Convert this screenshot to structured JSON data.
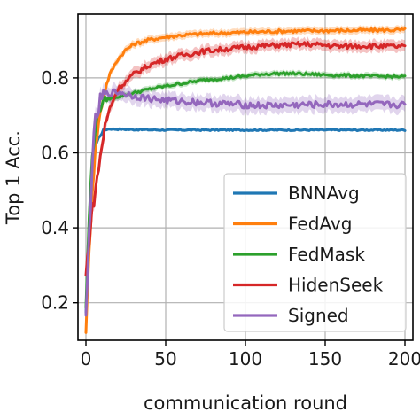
{
  "chart_data": {
    "type": "line",
    "xlabel": "communication round",
    "ylabel": "Top 1 Acc.",
    "xlim": [
      -5,
      205
    ],
    "ylim": [
      0.1,
      0.97
    ],
    "xticks": [
      0,
      50,
      100,
      150,
      200
    ],
    "xtick_labels": [
      "0",
      "50",
      "100",
      "150",
      "200"
    ],
    "yticks": [
      0.2,
      0.4,
      0.6,
      0.8
    ],
    "ytick_labels": [
      "0.2",
      "0.4",
      "0.6",
      "0.8"
    ],
    "grid": true,
    "legend_position": "lower-right",
    "series": [
      {
        "name": "BNNAvg",
        "color": "#1f77b4",
        "x": [
          0,
          2,
          4,
          6,
          8,
          10,
          12,
          15,
          20,
          30,
          50,
          75,
          100,
          125,
          150,
          175,
          200
        ],
        "y": [
          0.17,
          0.4,
          0.55,
          0.62,
          0.64,
          0.655,
          0.662,
          0.664,
          0.663,
          0.662,
          0.661,
          0.661,
          0.661,
          0.661,
          0.661,
          0.661,
          0.661
        ],
        "band": 0.004
      },
      {
        "name": "FedAvg",
        "color": "#ff7f0e",
        "x": [
          0,
          2,
          4,
          6,
          8,
          10,
          12,
          15,
          20,
          25,
          30,
          40,
          50,
          60,
          75,
          100,
          125,
          150,
          175,
          200
        ],
        "y": [
          0.13,
          0.33,
          0.5,
          0.61,
          0.68,
          0.73,
          0.77,
          0.81,
          0.85,
          0.875,
          0.89,
          0.902,
          0.909,
          0.914,
          0.918,
          0.922,
          0.925,
          0.926,
          0.927,
          0.928
        ],
        "band": 0.01
      },
      {
        "name": "FedMask",
        "color": "#2ca02c",
        "x": [
          0,
          2,
          4,
          6,
          8,
          10,
          12,
          15,
          20,
          30,
          40,
          50,
          60,
          75,
          90,
          100,
          110,
          125,
          140,
          150,
          175,
          200
        ],
        "y": [
          0.19,
          0.43,
          0.59,
          0.67,
          0.71,
          0.73,
          0.74,
          0.745,
          0.75,
          0.76,
          0.77,
          0.778,
          0.785,
          0.795,
          0.8,
          0.805,
          0.81,
          0.812,
          0.81,
          0.808,
          0.805,
          0.803
        ],
        "band": 0.008
      },
      {
        "name": "HidenSeek",
        "color": "#d62728",
        "x": [
          0,
          2,
          4,
          6,
          8,
          10,
          12,
          15,
          18,
          20,
          25,
          30,
          40,
          50,
          60,
          75,
          90,
          100,
          110,
          125,
          140,
          150,
          160,
          175,
          190,
          200
        ],
        "y": [
          0.27,
          0.37,
          0.45,
          0.5,
          0.56,
          0.62,
          0.67,
          0.72,
          0.75,
          0.77,
          0.79,
          0.81,
          0.835,
          0.85,
          0.86,
          0.872,
          0.878,
          0.882,
          0.885,
          0.888,
          0.89,
          0.887,
          0.884,
          0.886,
          0.884,
          0.883
        ],
        "band": 0.015
      },
      {
        "name": "Signed",
        "color": "#9467bd",
        "x": [
          0,
          2,
          4,
          6,
          8,
          10,
          12,
          15,
          20,
          25,
          30,
          40,
          50,
          60,
          75,
          90,
          100,
          110,
          125,
          140,
          150,
          175,
          200
        ],
        "y": [
          0.15,
          0.38,
          0.58,
          0.68,
          0.72,
          0.745,
          0.755,
          0.76,
          0.762,
          0.758,
          0.752,
          0.745,
          0.74,
          0.738,
          0.734,
          0.73,
          0.728,
          0.726,
          0.727,
          0.728,
          0.729,
          0.729,
          0.728
        ],
        "band": 0.02
      }
    ]
  }
}
